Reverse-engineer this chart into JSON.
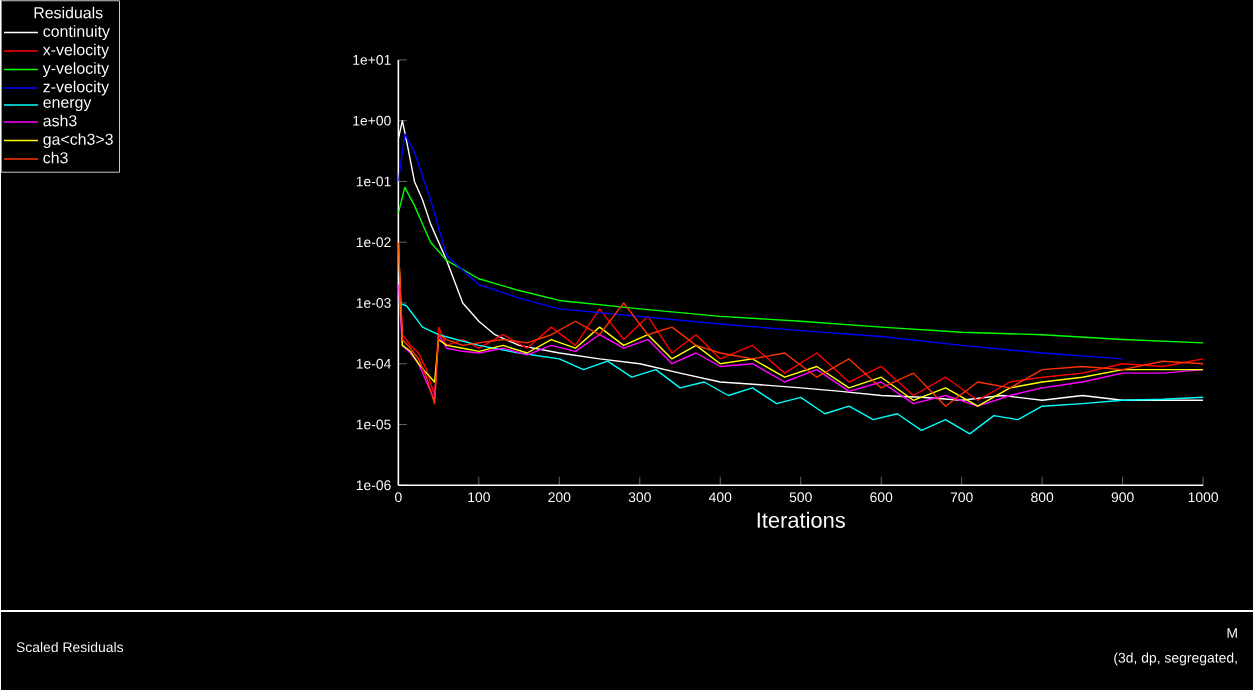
{
  "chart_data": {
    "type": "line",
    "title": "Scaled Residuals",
    "xlabel": "Iterations",
    "legend_title": "Residuals",
    "legend": "top left",
    "log": "y",
    "xlim": [
      0,
      1000
    ],
    "ylim": [
      1e-06,
      10
    ],
    "xticks": [
      0,
      100,
      200,
      300,
      400,
      500,
      600,
      700,
      800,
      900,
      1000
    ],
    "yticks": [
      {
        "value": 10,
        "label": "1e+01"
      },
      {
        "value": 1,
        "label": "1e+00"
      },
      {
        "value": 0.1,
        "label": "1e-01"
      },
      {
        "value": 0.01,
        "label": "1e-02"
      },
      {
        "value": 0.001,
        "label": "1e-03"
      },
      {
        "value": 0.0001,
        "label": "1e-04"
      },
      {
        "value": 1e-05,
        "label": "1e-05"
      },
      {
        "value": 1e-06,
        "label": "1e-06"
      }
    ],
    "annotations": [
      "M",
      "(3d, dp, segregated,"
    ],
    "series": [
      {
        "name": "continuity",
        "color": "#ffffff",
        "x": [
          0,
          5,
          12,
          20,
          30,
          40,
          60,
          80,
          100,
          120,
          150,
          200,
          250,
          300,
          350,
          400,
          450,
          500,
          550,
          600,
          650,
          700,
          750,
          800,
          850,
          900,
          950,
          1000
        ],
        "values": [
          0.5,
          1,
          0.35,
          0.1,
          0.05,
          0.02,
          0.005,
          0.001,
          0.0005,
          0.0003,
          0.0002,
          0.00015,
          0.00012,
          0.0001,
          7e-05,
          5e-05,
          4.5e-05,
          4e-05,
          3.5e-05,
          3e-05,
          2.8e-05,
          2.5e-05,
          3e-05,
          2.5e-05,
          3e-05,
          2.5e-05,
          2.5e-05,
          2.5e-05
        ]
      },
      {
        "name": "x-velocity",
        "color": "#ff0000",
        "x": [
          0,
          5,
          15,
          25,
          35,
          45,
          50,
          60,
          80,
          100,
          130,
          160,
          190,
          220,
          250,
          280,
          310,
          340,
          370,
          400,
          440,
          480,
          520,
          560,
          600,
          640,
          680,
          720,
          760,
          800,
          850,
          900,
          950,
          1000
        ],
        "values": [
          0.008,
          0.0003,
          0.0002,
          0.00015,
          8e-05,
          3e-05,
          0.0004,
          0.0002,
          0.00025,
          0.00018,
          0.0003,
          0.00018,
          0.0004,
          0.0002,
          0.0008,
          0.00025,
          0.0006,
          0.00015,
          0.0003,
          0.00012,
          0.0002,
          7e-05,
          0.00015,
          5e-05,
          9e-05,
          3e-05,
          6e-05,
          2.5e-05,
          5e-05,
          6e-05,
          7e-05,
          0.0001,
          9e-05,
          0.00012
        ]
      },
      {
        "name": "y-velocity",
        "color": "#00ff00",
        "x": [
          0,
          8,
          20,
          40,
          60,
          100,
          150,
          200,
          300,
          400,
          500,
          600,
          700,
          800,
          900,
          1000
        ],
        "values": [
          0.03,
          0.08,
          0.04,
          0.01,
          0.005,
          0.0025,
          0.0016,
          0.0011,
          0.0008,
          0.0006,
          0.0005,
          0.0004,
          0.00033,
          0.0003,
          0.00025,
          0.00022
        ]
      },
      {
        "name": "z-velocity",
        "color": "#0000ff",
        "x": [
          0,
          8,
          20,
          40,
          60,
          100,
          150,
          200,
          300,
          400,
          500,
          600,
          700,
          800,
          900
        ],
        "values": [
          0.1,
          0.6,
          0.3,
          0.05,
          0.006,
          0.002,
          0.0012,
          0.0008,
          0.0006,
          0.00045,
          0.00035,
          0.00028,
          0.0002,
          0.00015,
          0.00012
        ]
      },
      {
        "name": "energy",
        "color": "#00ffff",
        "x": [
          0,
          10,
          30,
          50,
          100,
          150,
          200,
          230,
          260,
          290,
          320,
          350,
          380,
          410,
          440,
          470,
          500,
          530,
          560,
          590,
          620,
          650,
          680,
          710,
          740,
          770,
          800,
          850,
          900,
          950,
          1000
        ],
        "values": [
          0.001,
          0.0009,
          0.0004,
          0.0003,
          0.0002,
          0.00015,
          0.00012,
          8e-05,
          0.00011,
          6e-05,
          8e-05,
          4e-05,
          5e-05,
          3e-05,
          4e-05,
          2.2e-05,
          2.8e-05,
          1.5e-05,
          2e-05,
          1.2e-05,
          1.5e-05,
          8e-06,
          1.2e-05,
          7e-06,
          1.4e-05,
          1.2e-05,
          2e-05,
          2.2e-05,
          2.5e-05,
          2.6e-05,
          2.8e-05
        ]
      },
      {
        "name": "ash3",
        "color": "#ff00ff",
        "x": [
          0,
          5,
          15,
          25,
          35,
          45,
          50,
          60,
          80,
          100,
          130,
          160,
          190,
          220,
          250,
          280,
          310,
          340,
          370,
          400,
          440,
          480,
          520,
          560,
          600,
          640,
          680,
          720,
          760,
          800,
          850,
          900,
          950,
          1000
        ],
        "values": [
          0.002,
          0.0002,
          0.00015,
          0.0001,
          5e-05,
          2.5e-05,
          0.0003,
          0.00018,
          0.00016,
          0.00015,
          0.00018,
          0.00014,
          0.0002,
          0.00016,
          0.0003,
          0.00018,
          0.00025,
          0.0001,
          0.00015,
          9e-05,
          0.0001,
          5e-05,
          8e-05,
          3.5e-05,
          5e-05,
          2.2e-05,
          3e-05,
          2e-05,
          3e-05,
          4e-05,
          5e-05,
          7e-05,
          7e-05,
          8e-05
        ]
      },
      {
        "name": "ga<ch3>3",
        "color": "#ffff00",
        "x": [
          0,
          5,
          15,
          25,
          35,
          45,
          50,
          60,
          80,
          100,
          130,
          160,
          190,
          220,
          250,
          280,
          310,
          340,
          370,
          400,
          440,
          480,
          520,
          560,
          600,
          640,
          680,
          720,
          760,
          800,
          850,
          900,
          950,
          1000
        ],
        "values": [
          0.01,
          0.0002,
          0.00016,
          0.0001,
          7e-05,
          5e-05,
          0.00025,
          0.0002,
          0.00018,
          0.00016,
          0.0002,
          0.00015,
          0.00025,
          0.00018,
          0.0004,
          0.0002,
          0.0003,
          0.00012,
          0.0002,
          0.0001,
          0.00012,
          6e-05,
          9e-05,
          4e-05,
          6e-05,
          2.5e-05,
          4e-05,
          2e-05,
          4e-05,
          5e-05,
          6e-05,
          8e-05,
          8e-05,
          8e-05
        ]
      },
      {
        "name": "ch3",
        "color": "#ff3300",
        "x": [
          0,
          5,
          15,
          25,
          35,
          45,
          50,
          60,
          80,
          100,
          130,
          160,
          190,
          220,
          250,
          280,
          310,
          340,
          370,
          400,
          440,
          480,
          520,
          560,
          600,
          640,
          680,
          720,
          760,
          800,
          850,
          900,
          950,
          1000
        ],
        "values": [
          0.01,
          0.00025,
          0.00018,
          0.00012,
          6e-05,
          2.2e-05,
          0.0003,
          0.00025,
          0.0002,
          0.00022,
          0.00025,
          0.00022,
          0.0003,
          0.0005,
          0.0003,
          0.001,
          0.0003,
          0.0004,
          0.0002,
          0.00015,
          0.00012,
          0.00015,
          6e-05,
          0.00012,
          4e-05,
          7e-05,
          2e-05,
          5e-05,
          4e-05,
          8e-05,
          9e-05,
          8e-05,
          0.00011,
          0.0001
        ]
      }
    ]
  }
}
